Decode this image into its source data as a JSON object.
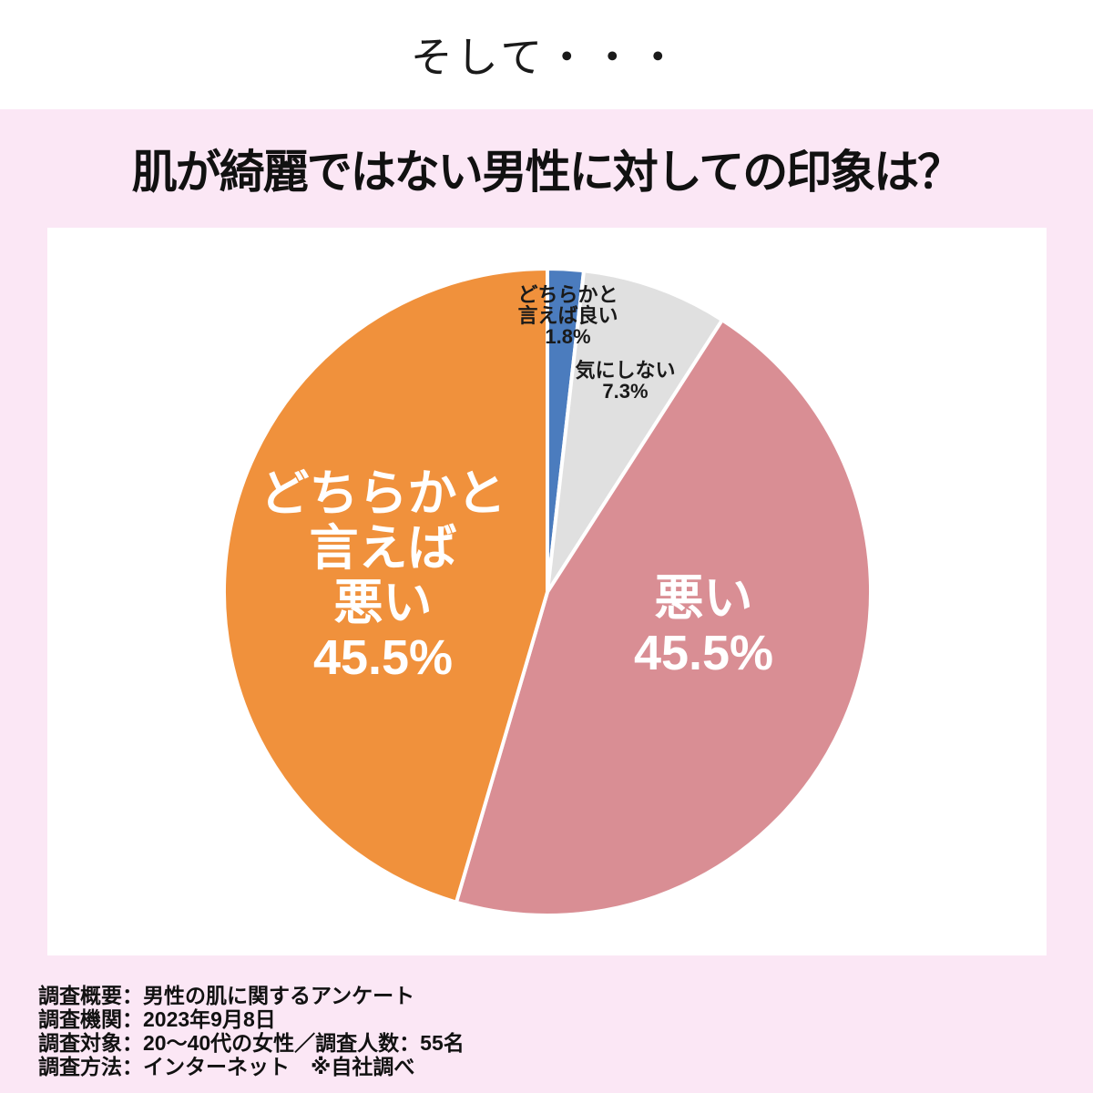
{
  "header": {
    "title": "そして・・・"
  },
  "section": {
    "question": "肌が綺麗ではない男性に対しての印象は？"
  },
  "chart_data": {
    "type": "pie",
    "title": "肌が綺麗ではない男性に対しての印象は？",
    "start_angle_deg": 0,
    "direction": "clockwise",
    "legend_position": "none",
    "slices": [
      {
        "label": "どちらかと言えば良い",
        "value": 1.8,
        "percent_label": "1.8%",
        "color": "#4b7cbe",
        "label_color": "#1a1a1a",
        "display_lines": [
          "どちらかと",
          "言えば良い",
          "1.8%"
        ]
      },
      {
        "label": "気にしない",
        "value": 7.3,
        "percent_label": "7.3%",
        "color": "#e0e0e0",
        "label_color": "#1a1a1a",
        "display_lines": [
          "気にしない",
          "7.3%"
        ]
      },
      {
        "label": "悪い",
        "value": 45.5,
        "percent_label": "45.5%",
        "color": "#d98e94",
        "label_color": "#ffffff",
        "display_lines": [
          "悪い",
          "45.5%"
        ]
      },
      {
        "label": "どちらかと言えば悪い",
        "value": 45.5,
        "percent_label": "45.5%",
        "color": "#f0913c",
        "label_color": "#ffffff",
        "display_lines": [
          "どちらかと",
          "言えば",
          "悪い",
          "45.5%"
        ]
      }
    ]
  },
  "footer": {
    "lines": [
      "調査概要：男性の肌に関するアンケート",
      "調査機関：2023年9月8日",
      "調査対象：20〜40代の女性／調査人数：55名",
      "調査方法：インターネット　※自社調べ"
    ]
  },
  "colors": {
    "background_pink": "#fbe7f5",
    "chart_background": "#ffffff",
    "slice_border": "#ffffff",
    "text": "#1a1a1a"
  }
}
